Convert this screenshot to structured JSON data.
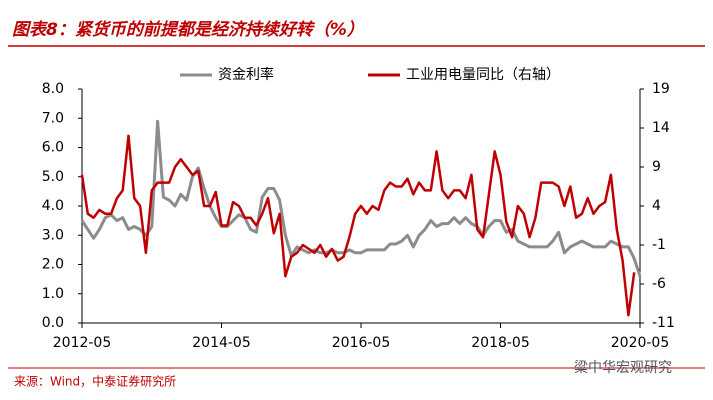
{
  "chart_data": {
    "type": "line",
    "title": "图表8：紧货币的前提都是经济持续好转（%）",
    "source": "来源：Wind，中泰证券研究所",
    "watermark": "粱中华宏观研究",
    "x": [
      "2012-05",
      "2012-06",
      "2012-07",
      "2012-08",
      "2012-09",
      "2012-10",
      "2012-11",
      "2012-12",
      "2013-01",
      "2013-02",
      "2013-03",
      "2013-04",
      "2013-05",
      "2013-06",
      "2013-07",
      "2013-08",
      "2013-09",
      "2013-10",
      "2013-11",
      "2013-12",
      "2014-01",
      "2014-02",
      "2014-03",
      "2014-04",
      "2014-05",
      "2014-06",
      "2014-07",
      "2014-08",
      "2014-09",
      "2014-10",
      "2014-11",
      "2014-12",
      "2015-01",
      "2015-02",
      "2015-03",
      "2015-04",
      "2015-05",
      "2015-06",
      "2015-07",
      "2015-08",
      "2015-09",
      "2015-10",
      "2015-11",
      "2015-12",
      "2016-01",
      "2016-02",
      "2016-03",
      "2016-04",
      "2016-05",
      "2016-06",
      "2016-07",
      "2016-08",
      "2016-09",
      "2016-10",
      "2016-11",
      "2016-12",
      "2017-01",
      "2017-02",
      "2017-03",
      "2017-04",
      "2017-05",
      "2017-06",
      "2017-07",
      "2017-08",
      "2017-09",
      "2017-10",
      "2017-11",
      "2017-12",
      "2018-01",
      "2018-02",
      "2018-03",
      "2018-04",
      "2018-05",
      "2018-06",
      "2018-07",
      "2018-08",
      "2018-09",
      "2018-10",
      "2018-11",
      "2018-12",
      "2019-01",
      "2019-02",
      "2019-03",
      "2019-04",
      "2019-05",
      "2019-06",
      "2019-07",
      "2019-08",
      "2019-09",
      "2019-10",
      "2019-11",
      "2019-12",
      "2020-01",
      "2020-02",
      "2020-03",
      "2020-04",
      "2020-05"
    ],
    "series": [
      {
        "name": "资金利率",
        "color": "#8c8c8c",
        "axis": "y",
        "values": [
          3.5,
          3.2,
          2.9,
          3.2,
          3.6,
          3.7,
          3.5,
          3.6,
          3.2,
          3.3,
          3.2,
          3.0,
          3.3,
          6.9,
          4.3,
          4.2,
          4.0,
          4.4,
          4.2,
          5.0,
          5.3,
          4.6,
          4.0,
          3.6,
          3.3,
          3.3,
          3.5,
          3.7,
          3.6,
          3.2,
          3.1,
          4.3,
          4.6,
          4.6,
          4.2,
          3.0,
          2.3,
          2.6,
          2.5,
          2.4,
          2.5,
          2.4,
          2.4,
          2.5,
          2.4,
          2.4,
          2.5,
          2.4,
          2.4,
          2.5,
          2.5,
          2.5,
          2.5,
          2.7,
          2.7,
          2.8,
          3.0,
          2.6,
          3.0,
          3.2,
          3.5,
          3.3,
          3.4,
          3.4,
          3.6,
          3.4,
          3.6,
          3.4,
          3.3,
          3.0,
          3.3,
          3.5,
          3.5,
          3.1,
          3.2,
          2.8,
          2.7,
          2.6,
          2.6,
          2.6,
          2.6,
          2.8,
          3.1,
          2.4,
          2.6,
          2.7,
          2.8,
          2.7,
          2.6,
          2.6,
          2.6,
          2.8,
          2.7,
          2.6,
          2.6,
          2.2,
          1.6
        ]
      },
      {
        "name": "工业用电量同比（右轴）",
        "color": "#c00000",
        "axis": "y2",
        "values": [
          8,
          3,
          2.5,
          3.5,
          3,
          3,
          5,
          6,
          13,
          5,
          4,
          -2,
          6,
          7,
          7,
          7,
          9,
          10,
          9,
          8,
          8.5,
          4,
          4,
          5.8,
          1.5,
          1.5,
          4.5,
          4,
          2.5,
          2.5,
          1.5,
          3,
          5,
          0.5,
          3,
          -5,
          -2.5,
          -2,
          -1,
          -1.5,
          -2,
          -1,
          -2.5,
          -1.5,
          -3,
          -2.5,
          0,
          3,
          4,
          3,
          4,
          3.5,
          6,
          7,
          6.5,
          6.5,
          7.5,
          5.5,
          7,
          6,
          6,
          11,
          6,
          5,
          6,
          6,
          5,
          8,
          1,
          0,
          5.5,
          11,
          8,
          2,
          0,
          4,
          3,
          0,
          2.5,
          7,
          7,
          7,
          6.5,
          4,
          6.5,
          2.5,
          3,
          5,
          3,
          4,
          4.5,
          8,
          1,
          -3,
          -10,
          -4.5,
          null
        ]
      }
    ],
    "xticks": [
      "2012-05",
      "2014-05",
      "2016-05",
      "2018-05",
      "2020-05"
    ],
    "ylim": [
      0,
      8
    ],
    "yticks": [
      {
        "value": 0,
        "label": "0.0"
      },
      {
        "value": 1,
        "label": "1.0"
      },
      {
        "value": 2,
        "label": "2.0"
      },
      {
        "value": 3,
        "label": "3.0"
      },
      {
        "value": 4,
        "label": "4.0"
      },
      {
        "value": 5,
        "label": "5.0"
      },
      {
        "value": 6,
        "label": "6.0"
      },
      {
        "value": 7,
        "label": "7.0"
      },
      {
        "value": 8,
        "label": "8.0"
      }
    ],
    "y2lim": [
      -11,
      19
    ],
    "y2ticks": [
      -11,
      -6,
      -1,
      4,
      9,
      14,
      19
    ],
    "legend": "top"
  }
}
